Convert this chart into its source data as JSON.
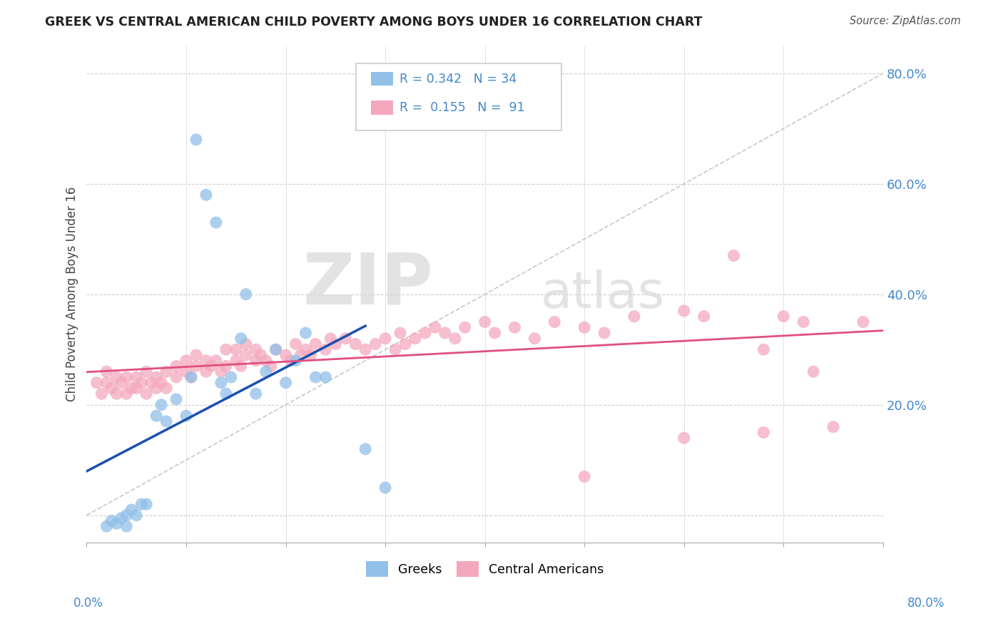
{
  "title": "GREEK VS CENTRAL AMERICAN CHILD POVERTY AMONG BOYS UNDER 16 CORRELATION CHART",
  "source": "Source: ZipAtlas.com",
  "ylabel": "Child Poverty Among Boys Under 16",
  "xlim": [
    0.0,
    0.8
  ],
  "ylim": [
    -0.05,
    0.85
  ],
  "watermark_zip": "ZIP",
  "watermark_atlas": "atlas",
  "legend_R_greek": "0.342",
  "legend_N_greek": "34",
  "legend_R_central": "0.155",
  "legend_N_central": "91",
  "greek_color": "#92c0e8",
  "central_color": "#f4a8be",
  "greek_line_color": "#1a50b0",
  "central_line_color": "#e05080",
  "diagonal_color": "#c8c8c8",
  "background_color": "#ffffff",
  "tick_color": "#4488cc",
  "title_color": "#222222",
  "ylabel_color": "#444444",
  "greek_x": [
    0.02,
    0.025,
    0.03,
    0.035,
    0.04,
    0.04,
    0.045,
    0.05,
    0.055,
    0.06,
    0.07,
    0.075,
    0.08,
    0.09,
    0.1,
    0.105,
    0.11,
    0.12,
    0.13,
    0.135,
    0.14,
    0.145,
    0.155,
    0.16,
    0.17,
    0.18,
    0.19,
    0.2,
    0.21,
    0.22,
    0.23,
    0.24,
    0.28,
    0.3
  ],
  "greek_y": [
    -0.02,
    -0.01,
    -0.015,
    -0.005,
    0.0,
    -0.02,
    0.01,
    0.0,
    0.02,
    0.02,
    0.18,
    0.2,
    0.17,
    0.21,
    0.18,
    0.25,
    0.68,
    0.58,
    0.53,
    0.24,
    0.22,
    0.25,
    0.32,
    0.4,
    0.22,
    0.26,
    0.3,
    0.24,
    0.28,
    0.33,
    0.25,
    0.25,
    0.12,
    0.05
  ],
  "central_x": [
    0.01,
    0.015,
    0.02,
    0.02,
    0.025,
    0.03,
    0.03,
    0.035,
    0.04,
    0.04,
    0.045,
    0.05,
    0.05,
    0.055,
    0.06,
    0.06,
    0.065,
    0.07,
    0.07,
    0.075,
    0.08,
    0.08,
    0.09,
    0.09,
    0.1,
    0.1,
    0.105,
    0.11,
    0.11,
    0.12,
    0.12,
    0.125,
    0.13,
    0.135,
    0.14,
    0.14,
    0.15,
    0.15,
    0.155,
    0.16,
    0.16,
    0.17,
    0.17,
    0.175,
    0.18,
    0.185,
    0.19,
    0.2,
    0.205,
    0.21,
    0.215,
    0.22,
    0.225,
    0.23,
    0.24,
    0.245,
    0.25,
    0.26,
    0.27,
    0.28,
    0.29,
    0.3,
    0.31,
    0.315,
    0.32,
    0.33,
    0.34,
    0.35,
    0.36,
    0.37,
    0.38,
    0.4,
    0.41,
    0.43,
    0.45,
    0.47,
    0.5,
    0.52,
    0.55,
    0.6,
    0.62,
    0.65,
    0.68,
    0.7,
    0.72,
    0.73,
    0.75,
    0.78,
    0.5,
    0.6,
    0.68
  ],
  "central_y": [
    0.24,
    0.22,
    0.24,
    0.26,
    0.23,
    0.22,
    0.25,
    0.24,
    0.22,
    0.25,
    0.23,
    0.23,
    0.25,
    0.24,
    0.22,
    0.26,
    0.24,
    0.23,
    0.25,
    0.24,
    0.23,
    0.26,
    0.25,
    0.27,
    0.26,
    0.28,
    0.25,
    0.27,
    0.29,
    0.26,
    0.28,
    0.27,
    0.28,
    0.26,
    0.27,
    0.3,
    0.28,
    0.3,
    0.27,
    0.29,
    0.31,
    0.28,
    0.3,
    0.29,
    0.28,
    0.27,
    0.3,
    0.29,
    0.28,
    0.31,
    0.29,
    0.3,
    0.29,
    0.31,
    0.3,
    0.32,
    0.31,
    0.32,
    0.31,
    0.3,
    0.31,
    0.32,
    0.3,
    0.33,
    0.31,
    0.32,
    0.33,
    0.34,
    0.33,
    0.32,
    0.34,
    0.35,
    0.33,
    0.34,
    0.32,
    0.35,
    0.34,
    0.33,
    0.36,
    0.37,
    0.36,
    0.47,
    0.3,
    0.36,
    0.35,
    0.26,
    0.16,
    0.35,
    0.07,
    0.14,
    0.15
  ]
}
